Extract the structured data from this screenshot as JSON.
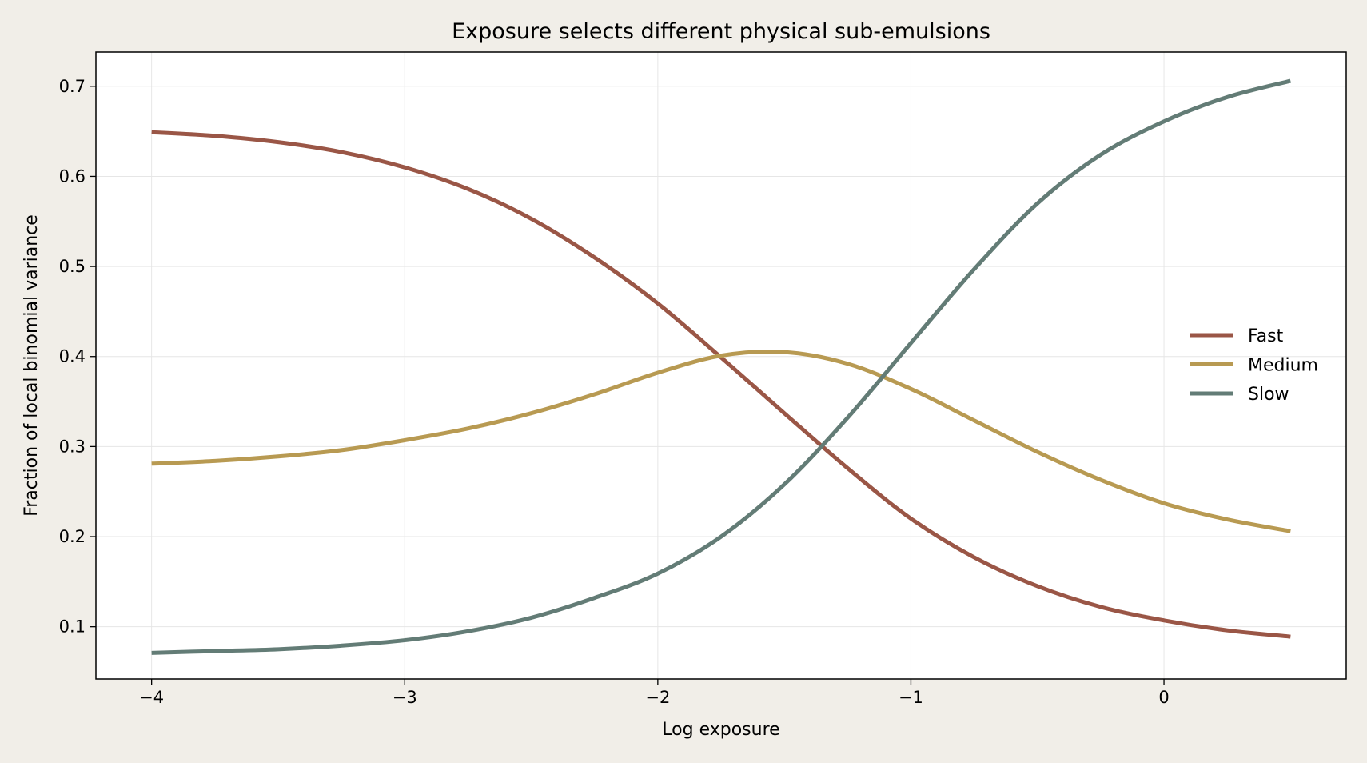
{
  "chart_data": {
    "type": "line",
    "title": "Exposure selects different physical sub-emulsions",
    "xlabel": "Log exposure",
    "ylabel": "Fraction of local binomial variance",
    "xlim": [
      -4.22,
      0.72
    ],
    "ylim": [
      0.042,
      0.738
    ],
    "x_ticks": [
      -4,
      -3,
      -2,
      -1,
      0
    ],
    "x_tick_labels": [
      "−4",
      "−3",
      "−2",
      "−1",
      "0"
    ],
    "y_ticks": [
      0.1,
      0.2,
      0.3,
      0.4,
      0.5,
      0.6,
      0.7
    ],
    "y_tick_labels": [
      "0.1",
      "0.2",
      "0.3",
      "0.4",
      "0.5",
      "0.6",
      "0.7"
    ],
    "grid": true,
    "legend_position": "center-right",
    "x": [
      -4.0,
      -3.75,
      -3.5,
      -3.25,
      -3.0,
      -2.75,
      -2.5,
      -2.25,
      -2.0,
      -1.75,
      -1.5,
      -1.25,
      -1.0,
      -0.75,
      -0.5,
      -0.25,
      0.0,
      0.25,
      0.5
    ],
    "series": [
      {
        "name": "Fast",
        "color": "#9a5646",
        "values": [
          0.649,
          0.645,
          0.638,
          0.627,
          0.61,
          0.586,
          0.553,
          0.51,
          0.459,
          0.399,
          0.337,
          0.276,
          0.22,
          0.177,
          0.145,
          0.122,
          0.107,
          0.096,
          0.089
        ]
      },
      {
        "name": "Medium",
        "color": "#b89a52",
        "values": [
          0.281,
          0.284,
          0.289,
          0.296,
          0.307,
          0.32,
          0.337,
          0.358,
          0.382,
          0.401,
          0.405,
          0.392,
          0.364,
          0.329,
          0.294,
          0.263,
          0.237,
          0.219,
          0.206
        ]
      },
      {
        "name": "Slow",
        "color": "#637c76",
        "values": [
          0.071,
          0.073,
          0.075,
          0.079,
          0.085,
          0.095,
          0.11,
          0.132,
          0.159,
          0.2,
          0.258,
          0.332,
          0.415,
          0.497,
          0.57,
          0.624,
          0.661,
          0.688,
          0.706
        ]
      }
    ]
  }
}
